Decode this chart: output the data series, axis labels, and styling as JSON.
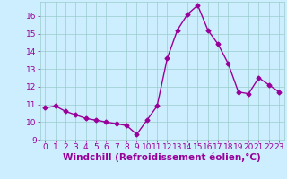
{
  "x": [
    0,
    1,
    2,
    3,
    4,
    5,
    6,
    7,
    8,
    9,
    10,
    11,
    12,
    13,
    14,
    15,
    16,
    17,
    18,
    19,
    20,
    21,
    22,
    23
  ],
  "y": [
    10.8,
    10.9,
    10.6,
    10.4,
    10.2,
    10.1,
    10.0,
    9.9,
    9.8,
    9.3,
    10.1,
    10.9,
    13.6,
    15.2,
    16.1,
    16.6,
    15.2,
    14.4,
    13.3,
    11.7,
    11.6,
    12.5,
    12.1,
    11.7
  ],
  "line_color": "#990099",
  "marker": "D",
  "marker_size": 2.5,
  "bg_color": "#cceeff",
  "grid_color": "#99cccc",
  "xlabel": "Windchill (Refroidissement éolien,°C)",
  "xlim": [
    -0.5,
    23.5
  ],
  "ylim": [
    9,
    16.8
  ],
  "yticks": [
    9,
    10,
    11,
    12,
    13,
    14,
    15,
    16
  ],
  "xticks": [
    0,
    1,
    2,
    3,
    4,
    5,
    6,
    7,
    8,
    9,
    10,
    11,
    12,
    13,
    14,
    15,
    16,
    17,
    18,
    19,
    20,
    21,
    22,
    23
  ],
  "tick_color": "#990099",
  "label_color": "#990099",
  "xlabel_fontsize": 7.5,
  "tick_fontsize": 6.5,
  "linewidth": 1.0
}
